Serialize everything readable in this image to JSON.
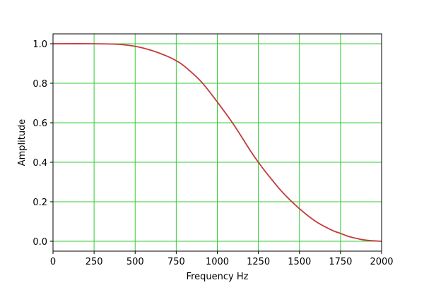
{
  "chart_data": {
    "type": "line",
    "title": "",
    "xlabel": "Frequency Hz",
    "ylabel": "Amplitude",
    "xlim": [
      0,
      2000
    ],
    "ylim": [
      -0.05,
      1.05
    ],
    "xticks": [
      0,
      250,
      500,
      750,
      1000,
      1250,
      1500,
      1750,
      2000
    ],
    "xtick_labels": [
      "0",
      "250",
      "500",
      "750",
      "1000",
      "1250",
      "1500",
      "1750",
      "2000"
    ],
    "yticks": [
      0.0,
      0.2,
      0.4,
      0.6,
      0.8,
      1.0
    ],
    "ytick_labels": [
      "0.0",
      "0.2",
      "0.4",
      "0.6",
      "0.8",
      "1.0"
    ],
    "grid": true,
    "grid_color": "#33cc33",
    "series": [
      {
        "color": "#c23b3b",
        "x": [
          0,
          250,
          400,
          500,
          600,
          700,
          750,
          800,
          900,
          1000,
          1100,
          1200,
          1250,
          1300,
          1400,
          1500,
          1600,
          1700,
          1750,
          1800,
          1900,
          2000
        ],
        "y": [
          1.0,
          1.0,
          0.997,
          0.987,
          0.966,
          0.935,
          0.914,
          0.886,
          0.81,
          0.705,
          0.59,
          0.46,
          0.4,
          0.345,
          0.245,
          0.165,
          0.1,
          0.055,
          0.04,
          0.024,
          0.006,
          0.0
        ]
      }
    ]
  }
}
